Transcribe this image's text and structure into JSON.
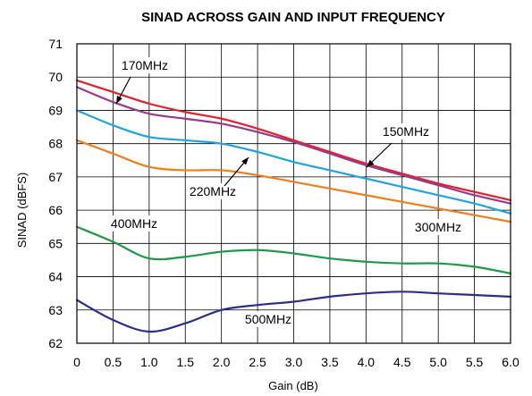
{
  "chart_data": {
    "type": "line",
    "title": "SINAD ACROSS GAIN AND INPUT FREQUENCY",
    "xlabel": "Gain (dB)",
    "ylabel": "SINAD (dBFS)",
    "xlim": [
      0,
      6.0
    ],
    "ylim": [
      62,
      71
    ],
    "x_ticks": [
      "0",
      "0.5",
      "1.0",
      "1.5",
      "2.0",
      "2.5",
      "3.0",
      "3.5",
      "4.0",
      "4.5",
      "5.0",
      "5.5",
      "6.0"
    ],
    "y_ticks": [
      "62",
      "63",
      "64",
      "65",
      "66",
      "67",
      "68",
      "69",
      "70",
      "71"
    ],
    "grid": true,
    "legend": "none",
    "series": [
      {
        "name": "170MHz",
        "color": "#e0202a",
        "x": [
          0,
          0.5,
          1.0,
          1.5,
          2.0,
          2.5,
          3.0,
          3.5,
          4.0,
          4.5,
          5.0,
          5.5,
          6.0
        ],
        "values": [
          69.9,
          69.55,
          69.2,
          68.95,
          68.75,
          68.45,
          68.1,
          67.75,
          67.4,
          67.1,
          66.8,
          66.55,
          66.3
        ]
      },
      {
        "name": "150MHz",
        "color": "#9b3a8a",
        "x": [
          0,
          0.5,
          1.0,
          1.5,
          2.0,
          2.5,
          3.0,
          3.5,
          4.0,
          4.5,
          5.0,
          5.5,
          6.0
        ],
        "values": [
          69.7,
          69.25,
          68.9,
          68.75,
          68.6,
          68.35,
          68.05,
          67.7,
          67.35,
          67.05,
          66.75,
          66.45,
          66.2
        ]
      },
      {
        "name": "220MHz",
        "color": "#1ea5e0",
        "x": [
          0,
          0.5,
          1.0,
          1.5,
          2.0,
          2.5,
          3.0,
          3.5,
          4.0,
          4.5,
          5.0,
          5.5,
          6.0
        ],
        "values": [
          69.0,
          68.55,
          68.2,
          68.1,
          68.0,
          67.75,
          67.45,
          67.2,
          66.95,
          66.7,
          66.45,
          66.2,
          65.9
        ]
      },
      {
        "name": "300MHz",
        "color": "#ef7f1a",
        "x": [
          0,
          0.5,
          1.0,
          1.5,
          2.0,
          2.5,
          3.0,
          3.5,
          4.0,
          4.5,
          5.0,
          5.5,
          6.0
        ],
        "values": [
          68.1,
          67.7,
          67.3,
          67.2,
          67.2,
          67.05,
          66.85,
          66.65,
          66.45,
          66.25,
          66.05,
          65.85,
          65.65
        ]
      },
      {
        "name": "400MHz",
        "color": "#1e9a48",
        "x": [
          0,
          0.5,
          1.0,
          1.5,
          2.0,
          2.5,
          3.0,
          3.5,
          4.0,
          4.5,
          5.0,
          5.5,
          6.0
        ],
        "values": [
          65.5,
          65.05,
          64.55,
          64.6,
          64.75,
          64.8,
          64.7,
          64.55,
          64.45,
          64.4,
          64.4,
          64.3,
          64.1
        ]
      },
      {
        "name": "500MHz",
        "color": "#2b2f8a",
        "x": [
          0,
          0.5,
          1.0,
          1.5,
          2.0,
          2.5,
          3.0,
          3.5,
          4.0,
          4.5,
          5.0,
          5.5,
          6.0
        ],
        "values": [
          63.3,
          62.7,
          62.35,
          62.6,
          63.0,
          63.15,
          63.25,
          63.4,
          63.5,
          63.55,
          63.5,
          63.45,
          63.4
        ]
      }
    ],
    "annotations": [
      {
        "text": "170MHz",
        "arrow": true
      },
      {
        "text": "150MHz",
        "arrow": true
      },
      {
        "text": "220MHz",
        "arrow": true
      },
      {
        "text": "300MHz",
        "arrow": false
      },
      {
        "text": "400MHz",
        "arrow": false
      },
      {
        "text": "500MHz",
        "arrow": false
      }
    ]
  }
}
